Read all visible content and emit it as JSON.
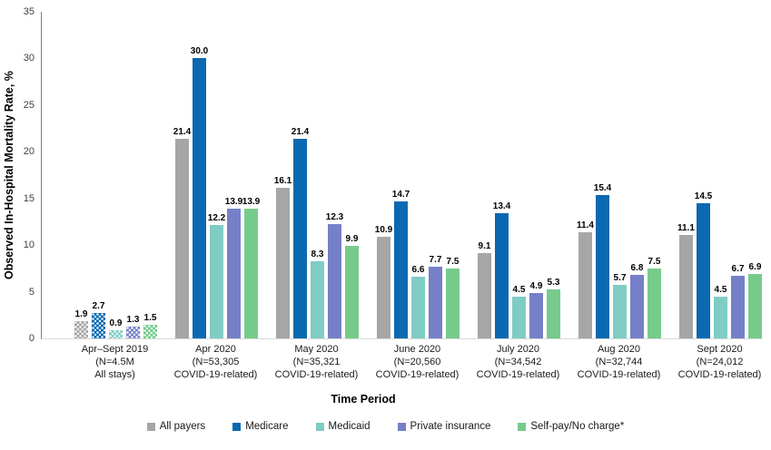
{
  "figure": {
    "y_axis_title": "Observed In-Hospital Mortality Rate, %",
    "x_axis_title": "Time Period"
  },
  "chart_data": {
    "type": "bar",
    "title": "",
    "xlabel": "Time Period",
    "ylabel": "Observed In-Hospital Mortality Rate, %",
    "ylim": [
      0,
      35
    ],
    "ytick_interval": 5,
    "grid": false,
    "legend_position": "bottom",
    "first_group_patterned": true,
    "categories": [
      "Apr–Sept 2019\n(N=4.5M\nAll stays)",
      "Apr 2020\n(N=53,305\nCOVID-19-related)",
      "May 2020\n(N=35,321\nCOVID-19-related)",
      "June 2020\n(N=20,560\nCOVID-19-related)",
      "July 2020\n(N=34,542\nCOVID-19-related)",
      "Aug 2020\n(N=32,744\nCOVID-19-related)",
      "Sept 2020\n(N=24,012\nCOVID-19-related)"
    ],
    "series": [
      {
        "name": "All payers",
        "color": "#A6A6A6",
        "values": [
          1.9,
          21.4,
          16.1,
          10.9,
          9.1,
          11.4,
          11.1
        ]
      },
      {
        "name": "Medicare",
        "color": "#0A69B0",
        "values": [
          2.7,
          30.0,
          21.4,
          14.7,
          13.4,
          15.4,
          14.5
        ]
      },
      {
        "name": "Medicaid",
        "color": "#7FCCC5",
        "values": [
          0.9,
          12.2,
          8.3,
          6.6,
          4.5,
          5.7,
          4.5
        ]
      },
      {
        "name": "Private insurance",
        "color": "#7580C8",
        "values": [
          1.3,
          13.9,
          12.3,
          7.7,
          4.9,
          6.8,
          6.7
        ]
      },
      {
        "name": "Self-pay/No charge*",
        "color": "#76CB8B",
        "values": [
          1.5,
          13.9,
          9.9,
          7.5,
          5.3,
          7.5,
          6.9
        ]
      }
    ]
  }
}
